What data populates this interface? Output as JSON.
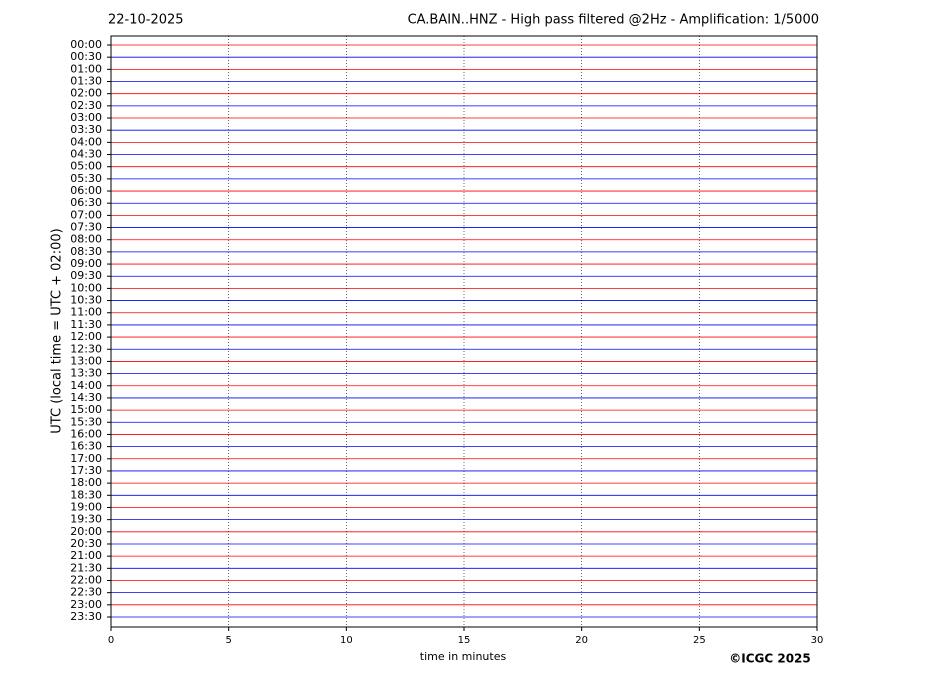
{
  "chart_data": {
    "type": "helicorder",
    "date": "22-10-2025",
    "title": "CA.BAIN..HNZ - High pass filtered @2Hz - Amplification: 1/5000",
    "y_label": "UTC (local time = UTC + 02:00)",
    "x_label": "time in minutes",
    "credit": "©ICGC 2025",
    "categories": [
      "00:00",
      "00:30",
      "01:00",
      "01:30",
      "02:00",
      "02:30",
      "03:00",
      "03:30",
      "04:00",
      "04:30",
      "05:00",
      "05:30",
      "06:00",
      "06:30",
      "07:00",
      "07:30",
      "08:00",
      "08:30",
      "09:00",
      "09:30",
      "10:00",
      "10:30",
      "11:00",
      "11:30",
      "12:00",
      "12:30",
      "13:00",
      "13:30",
      "14:00",
      "14:30",
      "15:00",
      "15:30",
      "16:00",
      "16:30",
      "17:00",
      "17:30",
      "18:00",
      "18:30",
      "19:00",
      "19:30",
      "20:00",
      "20:30",
      "21:00",
      "21:30",
      "22:00",
      "22:30",
      "23:00",
      "23:30"
    ],
    "colors": [
      "#ff0000",
      "#0000ff"
    ],
    "xlim": [
      0,
      30
    ],
    "xticks": [
      0,
      5,
      10,
      15,
      20,
      25,
      30
    ],
    "grid": true
  }
}
